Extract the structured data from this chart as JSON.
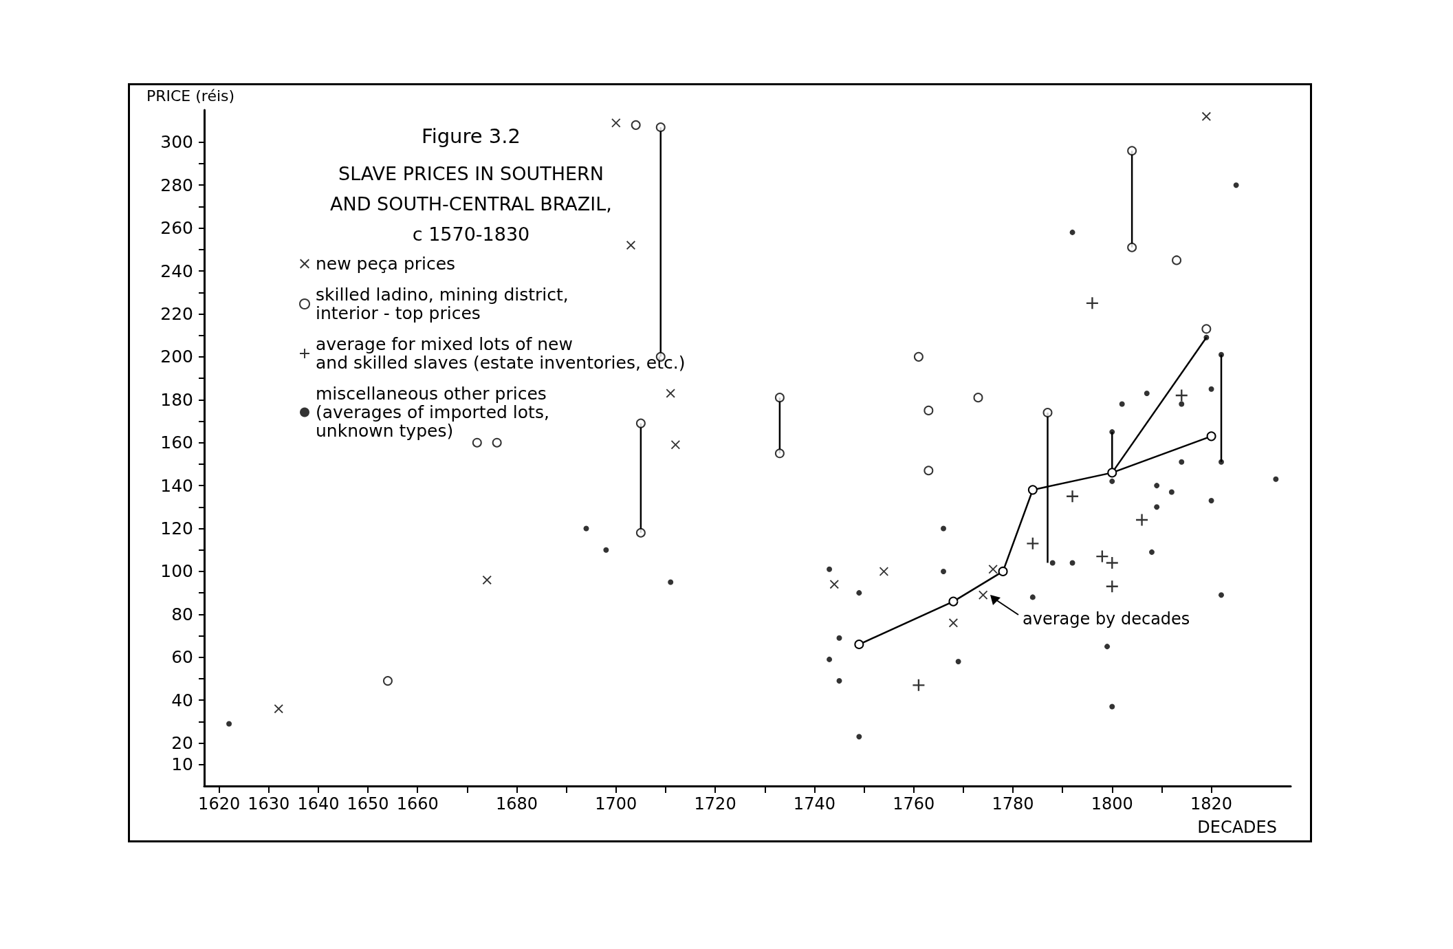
{
  "chart_data": {
    "type": "scatter",
    "title": "Figure 3.2",
    "subtitle": "SLAVE PRICES IN SOUTHERN\nAND SOUTH-CENTRAL BRAZIL,\nc 1570-1830",
    "xlabel": "DECADES",
    "ylabel": "PRICE (réis)",
    "xlim": [
      1617,
      1836
    ],
    "ylim": [
      0,
      315
    ],
    "xticks": [
      1620,
      1630,
      1640,
      1650,
      1660,
      {
        "value": 1670,
        "label": null
      },
      1680,
      {
        "value": 1690,
        "label": null
      },
      1700,
      {
        "value": 1710,
        "label": null
      },
      1720,
      {
        "value": 1730,
        "label": null
      },
      1740,
      {
        "value": 1750,
        "label": null
      },
      1760,
      {
        "value": 1770,
        "label": null
      },
      1780,
      {
        "value": 1790,
        "label": null
      },
      1800,
      {
        "value": 1810,
        "label": null
      },
      1820
    ],
    "yticks": [
      10,
      20,
      {
        "value": 30,
        "label": null
      },
      40,
      {
        "value": 50,
        "label": null
      },
      60,
      {
        "value": 70,
        "label": null
      },
      80,
      {
        "value": 90,
        "label": null
      },
      100,
      {
        "value": 110,
        "label": null
      },
      120,
      {
        "value": 130,
        "label": null
      },
      140,
      {
        "value": 150,
        "label": null
      },
      160,
      {
        "value": 170,
        "label": null
      },
      180,
      {
        "value": 190,
        "label": null
      },
      200,
      {
        "value": 210,
        "label": null
      },
      220,
      {
        "value": 230,
        "label": null
      },
      240,
      {
        "value": 250,
        "label": null
      },
      260,
      {
        "value": 270,
        "label": null
      },
      280,
      {
        "value": 290,
        "label": null
      },
      300
    ],
    "grid": false,
    "legend": "top left",
    "annotations": [
      "average by decades"
    ],
    "series": [
      {
        "name": "new peça prices",
        "color": "#000000",
        "marker": "x",
        "x": [
          1632,
          1674,
          1700,
          1703,
          1711,
          1712,
          1744,
          1754,
          1768,
          1774,
          1776,
          1819
        ],
        "values": [
          36,
          96,
          309,
          252,
          183,
          159,
          94,
          100,
          76,
          89,
          101,
          312
        ]
      },
      {
        "name": "skilled ladino, mining district,\ninterior - top prices",
        "color": "#000000",
        "marker": "circle",
        "x": [
          1654,
          1672,
          1676,
          1704,
          1709,
          1709,
          1705,
          1705,
          1733,
          1733,
          1761,
          1763,
          1763,
          1773,
          1787,
          1804,
          1804,
          1813,
          1819
        ],
        "values": [
          49,
          160,
          160,
          308,
          307,
          200,
          169,
          118,
          181,
          155,
          200,
          175,
          147,
          181,
          174,
          296,
          251,
          245,
          213
        ]
      },
      {
        "name": "average for mixed lots of new\nand skilled slaves (estate inventories, etc.)",
        "color": "#000000",
        "marker": "cross",
        "x": [
          1761,
          1784,
          1792,
          1796,
          1798,
          1800,
          1800,
          1806,
          1814
        ],
        "values": [
          47,
          113,
          135,
          225,
          107,
          104,
          93,
          124,
          182
        ]
      },
      {
        "name": "miscellaneous other prices\n(averages of imported lots,\nunknown types)",
        "color": "#000000",
        "marker": "dot",
        "x": [
          1622,
          1694,
          1698,
          1711,
          1743,
          1749,
          1745,
          1743,
          1745,
          1749,
          1766,
          1766,
          1769,
          1792,
          1825,
          1784,
          1788,
          1792,
          1802,
          1807,
          1814,
          1820,
          1800,
          1809,
          1812,
          1809,
          1814,
          1820,
          1833,
          1808,
          1822,
          1799,
          1800,
          1800,
          1822,
          1822,
          1819
        ],
        "values": [
          29,
          120,
          110,
          95,
          101,
          90,
          69,
          59,
          49,
          23,
          120,
          100,
          58,
          258,
          280,
          88,
          104,
          104,
          178,
          183,
          178,
          185,
          142,
          140,
          137,
          130,
          151,
          133,
          143,
          109,
          89,
          65,
          37,
          165,
          201,
          151,
          209
        ]
      },
      {
        "type": "line",
        "color": "#000000",
        "marker": "circle",
        "x": [
          1749,
          1768,
          1778,
          1784,
          1800,
          1820
        ],
        "values": [
          66,
          86,
          100,
          138,
          146,
          163
        ]
      },
      {
        "type": "line",
        "color": "#000000",
        "marker": "none",
        "x": [
          1800,
          1819
        ],
        "values": [
          146,
          209
        ]
      },
      {
        "type": "line",
        "color": "#000000",
        "marker": "none",
        "x": [
          1709,
          1709
        ],
        "values": [
          307,
          200
        ]
      },
      {
        "type": "line",
        "color": "#000000",
        "marker": "none",
        "x": [
          1705,
          1705
        ],
        "values": [
          169,
          118
        ]
      },
      {
        "type": "line",
        "color": "#000000",
        "marker": "none",
        "x": [
          1733,
          1733
        ],
        "values": [
          181,
          155
        ]
      },
      {
        "type": "line",
        "color": "#000000",
        "marker": "none",
        "x": [
          1787,
          1787
        ],
        "values": [
          174,
          104
        ]
      },
      {
        "type": "line",
        "color": "#000000",
        "marker": "none",
        "x": [
          1804,
          1804
        ],
        "values": [
          296,
          251
        ]
      },
      {
        "type": "line",
        "color": "#000000",
        "marker": "none",
        "x": [
          1800,
          1800
        ],
        "values": [
          165,
          146
        ]
      },
      {
        "type": "line",
        "color": "#000000",
        "marker": "none",
        "x": [
          1822,
          1822
        ],
        "values": [
          201,
          151
        ]
      }
    ]
  }
}
